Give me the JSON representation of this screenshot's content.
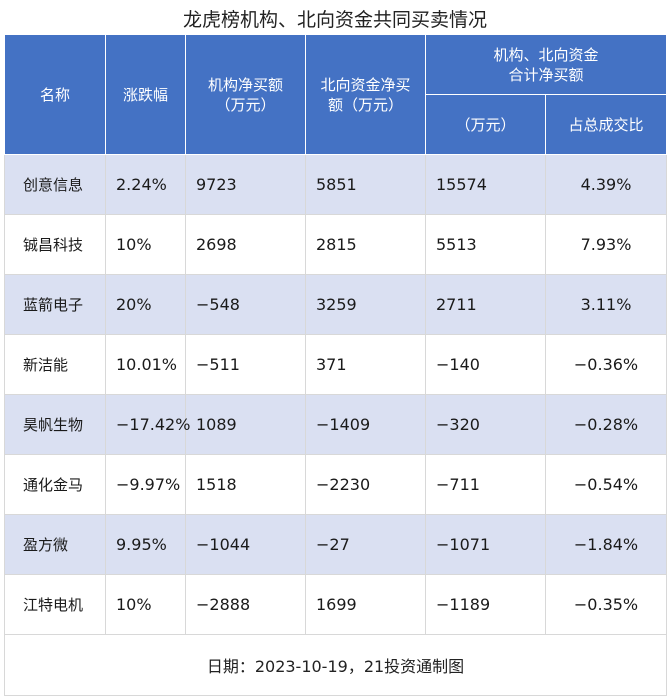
{
  "title": "龙虎榜机构、北向资金共同买卖情况",
  "headers": {
    "name": "名称",
    "change": "涨跌幅",
    "inst_line1": "机构净买额",
    "inst_line2": "（万元）",
    "north_line1": "北向资金净买",
    "north_line2": "额（万元）",
    "combined_line1": "机构、北向资金",
    "combined_line2": "合计净买额",
    "combined_unit": "（万元）",
    "share": "占总成交比"
  },
  "rows": [
    {
      "name": "创意信息",
      "change": "2.24%",
      "inst": "9723",
      "north": "5851",
      "total": "15574",
      "share": "4.39%"
    },
    {
      "name": "铖昌科技",
      "change": "10%",
      "inst": "2698",
      "north": "2815",
      "total": "5513",
      "share": "7.93%"
    },
    {
      "name": "蓝箭电子",
      "change": "20%",
      "inst": "−548",
      "north": "3259",
      "total": "2711",
      "share": "3.11%"
    },
    {
      "name": "新洁能",
      "change": "10.01%",
      "inst": "−511",
      "north": "371",
      "total": "−140",
      "share": "−0.36%"
    },
    {
      "name": "昊帆生物",
      "change": "−17.42%",
      "inst": "1089",
      "north": "−1409",
      "total": "−320",
      "share": "−0.28%"
    },
    {
      "name": "通化金马",
      "change": "−9.97%",
      "inst": "1518",
      "north": "−2230",
      "total": "−711",
      "share": "−0.54%"
    },
    {
      "name": "盈方微",
      "change": "9.95%",
      "inst": "−1044",
      "north": "−27",
      "total": "−1071",
      "share": "−1.84%"
    },
    {
      "name": "江特电机",
      "change": "10%",
      "inst": "−2888",
      "north": "1699",
      "total": "−1189",
      "share": "−0.35%"
    }
  ],
  "footer": "日期：2023-10-19，21投资通制图",
  "colors": {
    "header_bg": "#4472c4",
    "stripe": "#dae0f2"
  }
}
